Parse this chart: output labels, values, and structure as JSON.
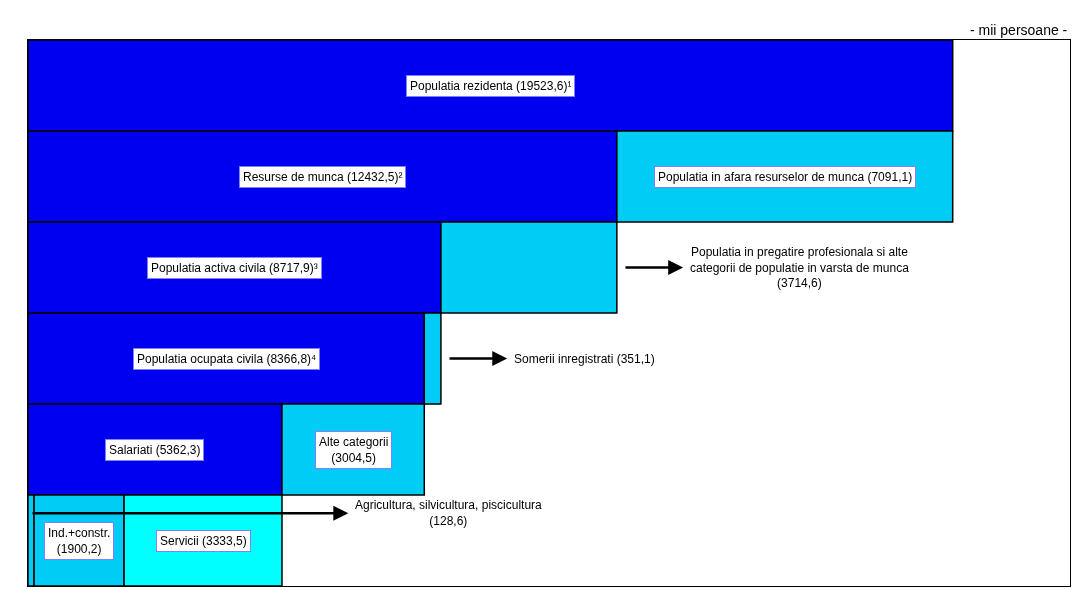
{
  "chart_data": {
    "type": "bar",
    "orientation": "horizontal",
    "stacked": true,
    "categories": [
      null,
      null,
      null,
      null,
      null,
      null
    ],
    "series": [
      {
        "colors": [
          "#0000f0",
          "#0000f0",
          "#0000f0",
          "#0000f0",
          "#0000f0",
          "#00ccf5"
        ],
        "values": [
          19523.6,
          12432.5,
          8717.9,
          8366.8,
          5362.3,
          128.6
        ],
        "value_labels": [
          "Populatia rezidenta (19523,6)¹",
          "Resurse de munca (12432,5)²",
          "Populatia activa civila (8717,9)³",
          "Populatia ocupata civila (8366,8)⁴",
          "Salariati (5362,3)",
          "Agricultura, silvicultura, piscicultura (128,6)"
        ]
      },
      {
        "colors": [
          null,
          "#00ccf5",
          "#00ccf5",
          "#00ccf5",
          "#00ccf5",
          "#00ccf5"
        ],
        "values": [
          null,
          7091.1,
          3714.6,
          351.1,
          3004.5,
          1900.2
        ],
        "value_labels": [
          null,
          "Populatia in afara resurselor de munca (7091,1)",
          "Populatia in pregatire profesionala si alte categorii de populatie in varsta de munca (3714,6)",
          "Somerii inregistrati (351,1)",
          "Alte categorii (3004,5)",
          "Ind.+constr. (1900,2)"
        ]
      },
      {
        "colors": [
          null,
          null,
          null,
          null,
          null,
          "#00ffff"
        ],
        "values": [
          null,
          null,
          null,
          null,
          null,
          3333.5
        ],
        "value_labels": [
          null,
          null,
          null,
          null,
          null,
          "Servicii (3333,5)"
        ]
      }
    ],
    "xlim": [
      0,
      22000
    ],
    "tick_labels": false,
    "annotations": [
      "- mii persoane -"
    ]
  }
}
